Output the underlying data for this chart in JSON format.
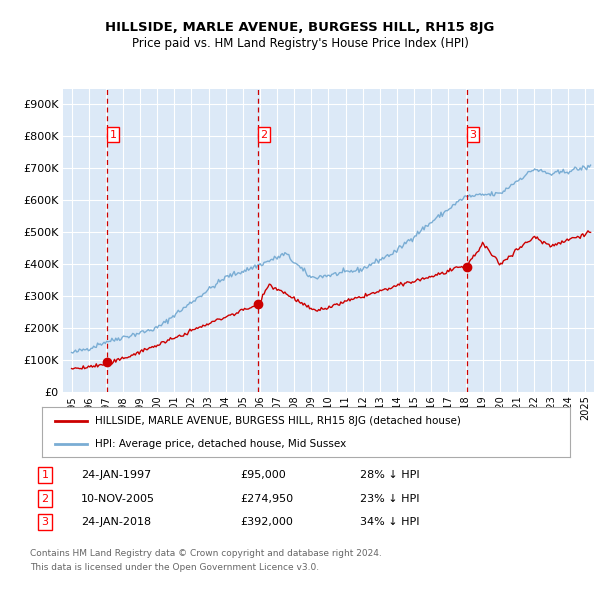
{
  "title": "HILLSIDE, MARLE AVENUE, BURGESS HILL, RH15 8JG",
  "subtitle": "Price paid vs. HM Land Registry's House Price Index (HPI)",
  "ylim": [
    0,
    950000
  ],
  "xlim_start": 1994.5,
  "xlim_end": 2025.5,
  "yticks": [
    0,
    100000,
    200000,
    300000,
    400000,
    500000,
    600000,
    700000,
    800000,
    900000
  ],
  "ytick_labels": [
    "£0",
    "£100K",
    "£200K",
    "£300K",
    "£400K",
    "£500K",
    "£600K",
    "£700K",
    "£800K",
    "£900K"
  ],
  "plot_bg_color": "#dce9f7",
  "grid_color": "#ffffff",
  "sale_color": "#cc0000",
  "hpi_color": "#7aadd4",
  "dashed_line_color": "#cc0000",
  "transactions": [
    {
      "label": "1",
      "date": 1997.07,
      "price": 95000,
      "text": "24-JAN-1997",
      "amount": "£95,000",
      "pct": "28% ↓ HPI"
    },
    {
      "label": "2",
      "date": 2005.87,
      "price": 274950,
      "text": "10-NOV-2005",
      "amount": "£274,950",
      "pct": "23% ↓ HPI"
    },
    {
      "label": "3",
      "date": 2018.07,
      "price": 392000,
      "text": "24-JAN-2018",
      "amount": "£392,000",
      "pct": "34% ↓ HPI"
    }
  ],
  "legend_sale_label": "HILLSIDE, MARLE AVENUE, BURGESS HILL, RH15 8JG (detached house)",
  "legend_hpi_label": "HPI: Average price, detached house, Mid Sussex",
  "footer1": "Contains HM Land Registry data © Crown copyright and database right 2024.",
  "footer2": "This data is licensed under the Open Government Licence v3.0."
}
